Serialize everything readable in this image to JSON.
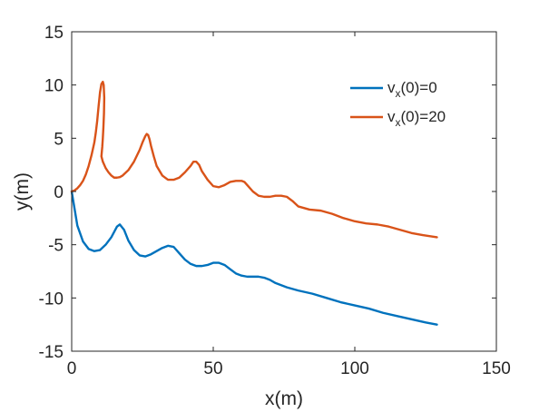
{
  "chart_data": {
    "type": "line",
    "title": "",
    "xlabel": "x(m)",
    "ylabel": "y(m)",
    "xlim": [
      0,
      150
    ],
    "ylim": [
      -15,
      15
    ],
    "xticks": [
      0,
      50,
      100,
      150
    ],
    "yticks": [
      -15,
      -10,
      -5,
      0,
      5,
      10,
      15
    ],
    "xtick_labels": [
      "0",
      "50",
      "100",
      "150"
    ],
    "ytick_labels": [
      "-15",
      "-10",
      "-5",
      "0",
      "5",
      "10",
      "15"
    ],
    "grid": false,
    "legend_position": "top-right",
    "series": [
      {
        "name": "v_x(0)=0",
        "legend_main": "v",
        "legend_sub": "x",
        "legend_rest": "(0)=0",
        "color": "#0072BD",
        "x": [
          0,
          2,
          4,
          6,
          8,
          10,
          12,
          14,
          16,
          17,
          18.5,
          20,
          22,
          24,
          26,
          28,
          30,
          32,
          34,
          36,
          38,
          40,
          42,
          44,
          46,
          48,
          50,
          52,
          54,
          56,
          58,
          60,
          62,
          64,
          66,
          68,
          70,
          72,
          76,
          80,
          85,
          90,
          95,
          100,
          105,
          110,
          115,
          120,
          125,
          129
        ],
        "y": [
          0,
          -3.2,
          -4.7,
          -5.4,
          -5.6,
          -5.5,
          -5.0,
          -4.3,
          -3.3,
          -3.1,
          -3.6,
          -4.6,
          -5.5,
          -6.0,
          -6.1,
          -5.9,
          -5.6,
          -5.3,
          -5.1,
          -5.2,
          -5.8,
          -6.4,
          -6.8,
          -7.0,
          -7.0,
          -6.9,
          -6.7,
          -6.7,
          -6.9,
          -7.3,
          -7.7,
          -7.9,
          -8.0,
          -8.0,
          -8.0,
          -8.1,
          -8.3,
          -8.6,
          -9.0,
          -9.3,
          -9.6,
          -10.0,
          -10.4,
          -10.7,
          -11.0,
          -11.4,
          -11.7,
          -12.0,
          -12.3,
          -12.5
        ]
      },
      {
        "name": "v_x(0)=20",
        "legend_main": "v",
        "legend_sub": "x",
        "legend_rest": "(0)=20",
        "color": "#D95319",
        "x": [
          0,
          1,
          2,
          3,
          4,
          5,
          6,
          7,
          8,
          8.5,
          9,
          9.5,
          10,
          10.5,
          11,
          11.3,
          11.5,
          11.4,
          11.2,
          11.0,
          10.8,
          10.6,
          10.5,
          11.0,
          12,
          13,
          14,
          15,
          16,
          17,
          18,
          20,
          22,
          24,
          25,
          26,
          26.5,
          27,
          27.5,
          28,
          29,
          30,
          32,
          34,
          36,
          38,
          40,
          42,
          43,
          44,
          45,
          46,
          48,
          50,
          52,
          54,
          56,
          58,
          60,
          61,
          62,
          64,
          66,
          68,
          70,
          72,
          74,
          76,
          78,
          80,
          84,
          88,
          92,
          96,
          100,
          104,
          108,
          112,
          116,
          120,
          124,
          129
        ],
        "y": [
          0,
          0.1,
          0.3,
          0.6,
          1.0,
          1.6,
          2.4,
          3.4,
          4.6,
          5.5,
          6.6,
          8.0,
          9.3,
          10.1,
          10.3,
          10.0,
          8.8,
          7.3,
          6.0,
          5.0,
          4.2,
          3.6,
          3.3,
          2.8,
          2.2,
          1.8,
          1.5,
          1.3,
          1.3,
          1.35,
          1.5,
          2.0,
          2.8,
          3.9,
          4.6,
          5.2,
          5.4,
          5.3,
          4.9,
          4.3,
          3.3,
          2.4,
          1.5,
          1.1,
          1.1,
          1.3,
          1.8,
          2.4,
          2.8,
          2.8,
          2.5,
          1.9,
          1.1,
          0.5,
          0.4,
          0.6,
          0.9,
          1.0,
          1.0,
          0.9,
          0.6,
          0.0,
          -0.4,
          -0.5,
          -0.5,
          -0.4,
          -0.4,
          -0.5,
          -0.9,
          -1.4,
          -1.7,
          -1.8,
          -2.1,
          -2.5,
          -2.8,
          -3.0,
          -3.1,
          -3.3,
          -3.6,
          -3.9,
          -4.1,
          -4.3
        ]
      }
    ]
  }
}
